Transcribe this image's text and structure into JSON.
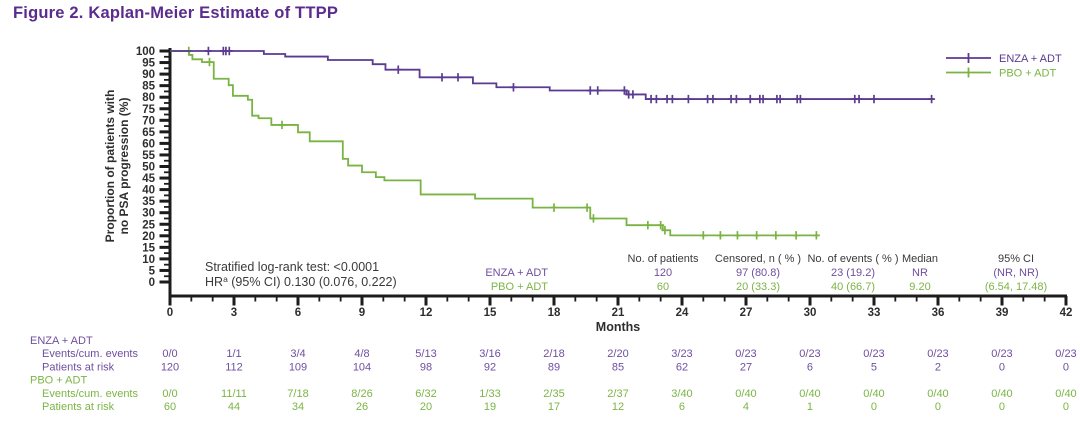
{
  "title": "Figure 2. Kaplan-Meier Estimate of TTPP",
  "colors": {
    "title": "#5b2b8e",
    "axis": "#1c1c1c",
    "tick_label": "#2e2e2e",
    "stats_text": "#3a3a3a",
    "enza": "#5b3a91",
    "enza_text": "#6f4f9f",
    "pbo": "#79b443",
    "pbo_text": "#7cb445"
  },
  "chart_data": {
    "type": "line",
    "subtype": "kaplan-meier-step",
    "x_axis": {
      "label": "Months",
      "range": [
        0,
        42
      ],
      "major_ticks": [
        0,
        3,
        6,
        9,
        12,
        15,
        18,
        21,
        24,
        27,
        30,
        33,
        36,
        39,
        42
      ],
      "minor_step": 1
    },
    "y_axis": {
      "label_lines": [
        "Proportion of patients with",
        "no PSA progression (%)"
      ],
      "range": [
        0,
        100
      ],
      "major_ticks": [
        100,
        95,
        90,
        85,
        80,
        75,
        70,
        65,
        60,
        55,
        50,
        45,
        40,
        35,
        30,
        25,
        20,
        15,
        10,
        5,
        0
      ],
      "minor_step": 2.5
    },
    "legend": [
      {
        "label": "ENZA + ADT",
        "series": "enza"
      },
      {
        "label": "PBO + ADT",
        "series": "pbo"
      }
    ],
    "stats": {
      "line1": "Stratified log-rank test: <0.0001",
      "line2_prefix": "HR",
      "line2_sup": "a",
      "line2_rest": " (95% CI) 0.130 (0.076, 0.222)"
    },
    "series": [
      {
        "name": "PBO + ADT",
        "color_key": "pbo",
        "steps": [
          [
            0,
            100
          ],
          [
            0.9,
            98.3
          ],
          [
            1.05,
            96.4
          ],
          [
            1.5,
            95.2
          ],
          [
            2.05,
            88
          ],
          [
            2.75,
            85.2
          ],
          [
            2.95,
            80.6
          ],
          [
            3.65,
            78.9
          ],
          [
            3.85,
            72
          ],
          [
            4.15,
            70.9
          ],
          [
            4.75,
            68
          ],
          [
            6,
            64.8
          ],
          [
            6.55,
            60.9
          ],
          [
            8.1,
            53.3
          ],
          [
            8.35,
            50.4
          ],
          [
            9,
            47.5
          ],
          [
            9.65,
            45.4
          ],
          [
            10.05,
            44
          ],
          [
            11.75,
            37.9
          ],
          [
            14.3,
            36.1
          ],
          [
            17,
            32.2
          ],
          [
            19.7,
            27.5
          ],
          [
            21.4,
            24.6
          ],
          [
            23.1,
            22.4
          ],
          [
            23.45,
            20.2
          ]
        ],
        "end_month": 30.4,
        "censor_months": [
          0.88,
          1.85,
          5.25,
          18,
          19.55,
          19.85,
          22.4,
          23,
          23.2,
          25,
          25.8,
          26.6,
          27.5,
          28.4,
          29.35,
          30.3
        ]
      },
      {
        "name": "ENZA + ADT",
        "color_key": "enza",
        "steps": [
          [
            0,
            100
          ],
          [
            4.4,
            98.7
          ],
          [
            5.4,
            97.6
          ],
          [
            7.4,
            96.1
          ],
          [
            9.5,
            94.3
          ],
          [
            10.1,
            91.9
          ],
          [
            11.7,
            88.6
          ],
          [
            14.2,
            86
          ],
          [
            15.3,
            84.3
          ],
          [
            17.8,
            82.9
          ],
          [
            21.4,
            81.2
          ],
          [
            22.3,
            79.2
          ]
        ],
        "end_month": 35.8,
        "censor_months": [
          1.8,
          2.5,
          2.62,
          2.78,
          10.7,
          12.75,
          13.5,
          16.1,
          19.7,
          20.05,
          21.3,
          21.5,
          21.7,
          22.55,
          22.8,
          23.3,
          23.55,
          24.3,
          25.2,
          25.45,
          26.3,
          26.55,
          27.2,
          27.65,
          27.8,
          28.45,
          28.6,
          29.4,
          29.55,
          32.1,
          32.3,
          33,
          35.7
        ]
      }
    ],
    "summary_table": {
      "columns": [
        "No. of patients",
        "Censored, n ( % )",
        "No. of events ( % )",
        "Median",
        "95% CI"
      ],
      "rows": [
        {
          "label": "ENZA + ADT",
          "color_key": "enza_text",
          "values": [
            "120",
            "97 (80.8)",
            "23 (19.2)",
            "NR",
            "(NR, NR)"
          ]
        },
        {
          "label": "PBO + ADT",
          "color_key": "pbo_text",
          "values": [
            "60",
            "20 (33.3)",
            "40 (66.7)",
            "9.20",
            "(6.54, 17.48)"
          ]
        }
      ]
    },
    "risk_table": {
      "months": [
        0,
        3,
        6,
        9,
        12,
        15,
        18,
        21,
        24,
        27,
        30,
        33,
        36,
        39,
        42
      ],
      "groups": [
        {
          "label": "ENZA + ADT",
          "color_key": "enza_text",
          "rows": [
            {
              "label": "Events/cum. events",
              "values": [
                "0/0",
                "1/1",
                "3/4",
                "4/8",
                "5/13",
                "3/16",
                "2/18",
                "2/20",
                "3/23",
                "0/23",
                "0/23",
                "0/23",
                "0/23",
                "0/23",
                "0/23"
              ]
            },
            {
              "label": "Patients at risk",
              "values": [
                "120",
                "112",
                "109",
                "104",
                "98",
                "92",
                "89",
                "85",
                "62",
                "27",
                "6",
                "5",
                "2",
                "0",
                "0"
              ]
            }
          ]
        },
        {
          "label": "PBO + ADT",
          "color_key": "pbo_text",
          "rows": [
            {
              "label": "Events/cum. events",
              "values": [
                "0/0",
                "11/11",
                "7/18",
                "8/26",
                "6/32",
                "1/33",
                "2/35",
                "2/37",
                "3/40",
                "0/40",
                "0/40",
                "0/40",
                "0/40",
                "0/40",
                "0/40"
              ]
            },
            {
              "label": "Patients at risk",
              "values": [
                "60",
                "44",
                "34",
                "26",
                "20",
                "19",
                "17",
                "12",
                "6",
                "4",
                "1",
                "0",
                "0",
                "0",
                "0"
              ]
            }
          ]
        }
      ]
    }
  }
}
